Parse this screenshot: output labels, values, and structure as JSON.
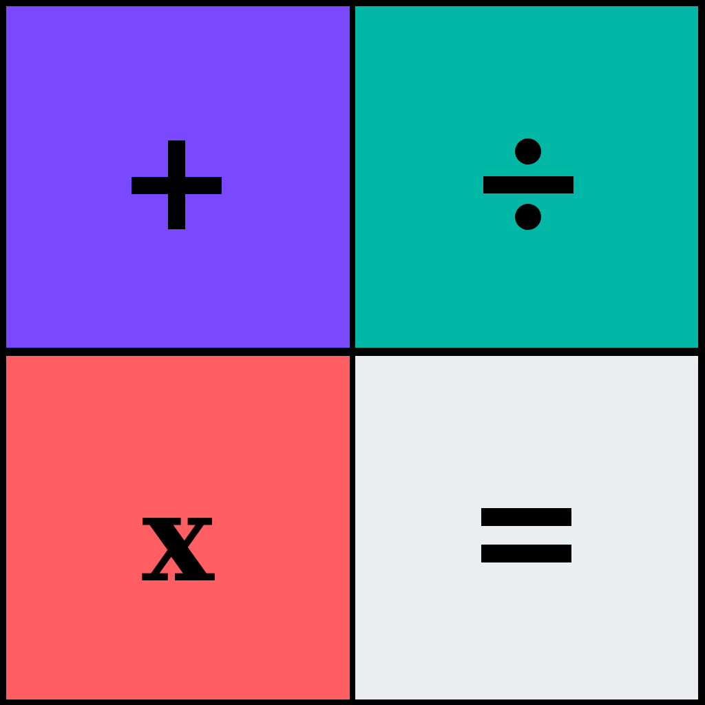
{
  "tiles": [
    {
      "id": "plus",
      "symbol": "+",
      "color": "#7A48FF",
      "icon": "plus-icon"
    },
    {
      "id": "divide",
      "symbol": "÷",
      "color": "#00B8A5",
      "icon": "divide-icon"
    },
    {
      "id": "times",
      "symbol": "x",
      "color": "#FF5E62",
      "icon": "times-icon"
    },
    {
      "id": "equals",
      "symbol": "=",
      "color": "#EAEEEF",
      "icon": "equals-icon"
    }
  ],
  "ink_color": "#000000",
  "grid_color": "#000000"
}
